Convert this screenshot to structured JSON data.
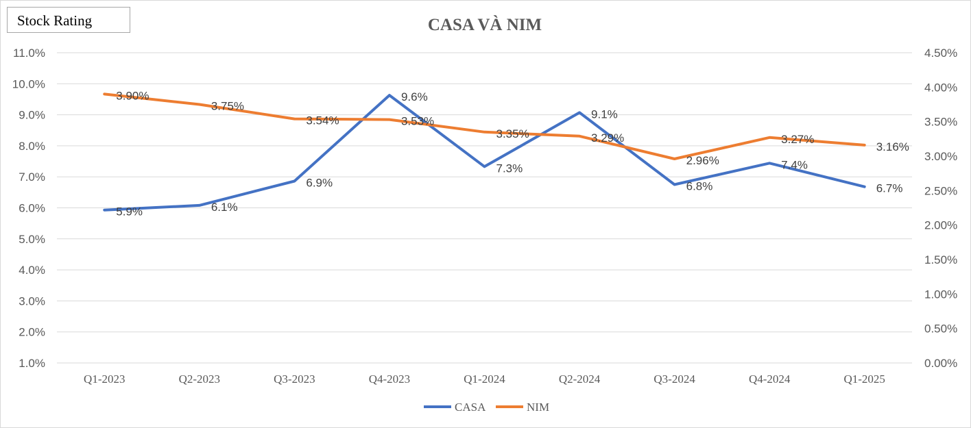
{
  "badge": {
    "label": "Stock Rating"
  },
  "chart_data": {
    "type": "line",
    "title": "CASA VÀ NIM",
    "categories": [
      "Q1-2023",
      "Q2-2023",
      "Q3-2023",
      "Q4-2023",
      "Q1-2024",
      "Q2-2024",
      "Q3-2024",
      "Q4-2024",
      "Q1-2025"
    ],
    "y_left": {
      "min": 1.0,
      "max": 11.0,
      "step": 1.0,
      "ticks": [
        "1.0%",
        "2.0%",
        "3.0%",
        "4.0%",
        "5.0%",
        "6.0%",
        "7.0%",
        "8.0%",
        "9.0%",
        "10.0%",
        "11.0%"
      ]
    },
    "y_right": {
      "min": 0.0,
      "max": 4.5,
      "step": 0.5,
      "ticks": [
        "0.00%",
        "0.50%",
        "1.00%",
        "1.50%",
        "2.00%",
        "2.50%",
        "3.00%",
        "3.50%",
        "4.00%",
        "4.50%"
      ]
    },
    "grid": true,
    "legend_position": "bottom",
    "series": [
      {
        "name": "CASA",
        "axis": "left",
        "color": "#4472C4",
        "values": [
          5.93,
          6.08,
          6.86,
          9.63,
          7.33,
          9.07,
          6.75,
          7.44,
          6.68
        ],
        "labels": [
          "5.9%",
          "6.1%",
          "6.9%",
          "9.6%",
          "7.3%",
          "9.1%",
          "6.8%",
          "7.4%",
          "6.7%"
        ]
      },
      {
        "name": "NIM",
        "axis": "right",
        "color": "#ED7D31",
        "values": [
          3.9,
          3.75,
          3.54,
          3.53,
          3.35,
          3.29,
          2.96,
          3.27,
          3.16
        ],
        "labels": [
          "3.90%",
          "3.75%",
          "3.54%",
          "3.53%",
          "3.35%",
          "3.29%",
          "2.96%",
          "3.27%",
          "3.16%"
        ]
      }
    ]
  }
}
